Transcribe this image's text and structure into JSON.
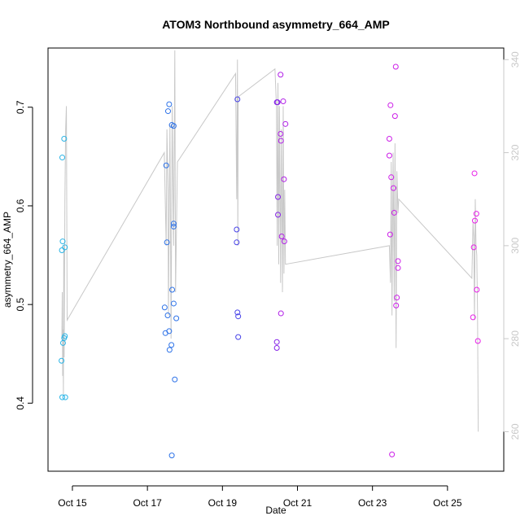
{
  "chart_data": {
    "type": "scatter",
    "title": "ATOM3 Northbound asymmetry_664_AMP",
    "xlabel": "Date",
    "ylabel": "asymmetry_664_AMP",
    "xlim": [
      14.35,
      26.5
    ],
    "ylim": [
      0.331,
      0.76
    ],
    "y2lim": [
      251.5,
      342.5
    ],
    "x_ticks": [
      {
        "value": 15,
        "label": "Oct 15"
      },
      {
        "value": 17,
        "label": "Oct 17"
      },
      {
        "value": 19,
        "label": "Oct 19"
      },
      {
        "value": 21,
        "label": "Oct 21"
      },
      {
        "value": 23,
        "label": "Oct 23"
      },
      {
        "value": 25,
        "label": "Oct 25"
      }
    ],
    "y_ticks": [
      {
        "value": 0.4,
        "label": "0.4"
      },
      {
        "value": 0.5,
        "label": "0.5"
      },
      {
        "value": 0.6,
        "label": "0.6"
      },
      {
        "value": 0.7,
        "label": "0.7"
      }
    ],
    "y2_ticks": [
      {
        "value": 260,
        "label": "260"
      },
      {
        "value": 280,
        "label": "280"
      },
      {
        "value": 300,
        "label": "300"
      },
      {
        "value": 320,
        "label": "320"
      },
      {
        "value": 340,
        "label": "340"
      }
    ],
    "colors": {
      "line": "#c8c8c8",
      "point_scale": [
        "#29b4e6",
        "#2e62e8",
        "#5a2ee8",
        "#a31ee8",
        "#e81ee8"
      ]
    },
    "points": [
      {
        "x": 14.78,
        "y": 0.668,
        "c": 0.0
      },
      {
        "x": 14.73,
        "y": 0.649,
        "c": 0.0
      },
      {
        "x": 14.74,
        "y": 0.564,
        "c": 0.0
      },
      {
        "x": 14.8,
        "y": 0.558,
        "c": 0.0
      },
      {
        "x": 14.72,
        "y": 0.555,
        "c": 0.0
      },
      {
        "x": 14.8,
        "y": 0.468,
        "c": 0.0
      },
      {
        "x": 14.78,
        "y": 0.466,
        "c": 0.0
      },
      {
        "x": 14.75,
        "y": 0.461,
        "c": 0.0
      },
      {
        "x": 14.71,
        "y": 0.443,
        "c": 0.0
      },
      {
        "x": 14.73,
        "y": 0.406,
        "c": 0.0
      },
      {
        "x": 14.81,
        "y": 0.406,
        "c": 0.0
      },
      {
        "x": 17.58,
        "y": 0.703,
        "c": 0.2
      },
      {
        "x": 17.55,
        "y": 0.696,
        "c": 0.2
      },
      {
        "x": 17.65,
        "y": 0.682,
        "c": 0.2
      },
      {
        "x": 17.7,
        "y": 0.681,
        "c": 0.2
      },
      {
        "x": 17.5,
        "y": 0.641,
        "c": 0.2
      },
      {
        "x": 17.7,
        "y": 0.582,
        "c": 0.2
      },
      {
        "x": 17.7,
        "y": 0.579,
        "c": 0.2
      },
      {
        "x": 17.52,
        "y": 0.563,
        "c": 0.2
      },
      {
        "x": 17.66,
        "y": 0.515,
        "c": 0.2
      },
      {
        "x": 17.7,
        "y": 0.501,
        "c": 0.2
      },
      {
        "x": 17.46,
        "y": 0.497,
        "c": 0.2
      },
      {
        "x": 17.54,
        "y": 0.489,
        "c": 0.2
      },
      {
        "x": 17.77,
        "y": 0.486,
        "c": 0.2
      },
      {
        "x": 17.58,
        "y": 0.473,
        "c": 0.2
      },
      {
        "x": 17.48,
        "y": 0.471,
        "c": 0.2
      },
      {
        "x": 17.64,
        "y": 0.459,
        "c": 0.2
      },
      {
        "x": 17.59,
        "y": 0.454,
        "c": 0.2
      },
      {
        "x": 17.73,
        "y": 0.424,
        "c": 0.2
      },
      {
        "x": 17.65,
        "y": 0.347,
        "c": 0.2
      },
      {
        "x": 19.4,
        "y": 0.708,
        "c": 0.4
      },
      {
        "x": 19.38,
        "y": 0.576,
        "c": 0.4
      },
      {
        "x": 19.38,
        "y": 0.563,
        "c": 0.4
      },
      {
        "x": 19.4,
        "y": 0.492,
        "c": 0.4
      },
      {
        "x": 19.42,
        "y": 0.488,
        "c": 0.4
      },
      {
        "x": 19.42,
        "y": 0.467,
        "c": 0.4
      },
      {
        "x": 20.45,
        "y": 0.705,
        "c": 0.65
      },
      {
        "x": 20.47,
        "y": 0.705,
        "c": 0.65
      },
      {
        "x": 20.48,
        "y": 0.609,
        "c": 0.65
      },
      {
        "x": 20.48,
        "y": 0.591,
        "c": 0.65
      },
      {
        "x": 20.45,
        "y": 0.462,
        "c": 0.65
      },
      {
        "x": 20.45,
        "y": 0.456,
        "c": 0.65
      },
      {
        "x": 20.55,
        "y": 0.733,
        "c": 0.8
      },
      {
        "x": 20.62,
        "y": 0.706,
        "c": 0.8
      },
      {
        "x": 20.68,
        "y": 0.683,
        "c": 0.8
      },
      {
        "x": 20.55,
        "y": 0.673,
        "c": 0.8
      },
      {
        "x": 20.56,
        "y": 0.666,
        "c": 0.8
      },
      {
        "x": 20.64,
        "y": 0.627,
        "c": 0.8
      },
      {
        "x": 20.58,
        "y": 0.569,
        "c": 0.8
      },
      {
        "x": 20.65,
        "y": 0.564,
        "c": 0.8
      },
      {
        "x": 20.56,
        "y": 0.491,
        "c": 0.8
      },
      {
        "x": 23.62,
        "y": 0.741,
        "c": 0.9
      },
      {
        "x": 23.48,
        "y": 0.702,
        "c": 0.9
      },
      {
        "x": 23.6,
        "y": 0.691,
        "c": 0.9
      },
      {
        "x": 23.45,
        "y": 0.668,
        "c": 0.9
      },
      {
        "x": 23.45,
        "y": 0.651,
        "c": 0.9
      },
      {
        "x": 23.5,
        "y": 0.629,
        "c": 0.9
      },
      {
        "x": 23.56,
        "y": 0.618,
        "c": 0.9
      },
      {
        "x": 23.58,
        "y": 0.593,
        "c": 0.9
      },
      {
        "x": 23.47,
        "y": 0.571,
        "c": 0.9
      },
      {
        "x": 23.68,
        "y": 0.544,
        "c": 0.9
      },
      {
        "x": 23.68,
        "y": 0.537,
        "c": 0.9
      },
      {
        "x": 23.65,
        "y": 0.507,
        "c": 0.9
      },
      {
        "x": 23.63,
        "y": 0.499,
        "c": 0.9
      },
      {
        "x": 23.52,
        "y": 0.348,
        "c": 0.9
      },
      {
        "x": 25.73,
        "y": 0.585,
        "c": 1.0
      },
      {
        "x": 25.72,
        "y": 0.633,
        "c": 1.0
      },
      {
        "x": 25.77,
        "y": 0.592,
        "c": 1.0
      },
      {
        "x": 25.7,
        "y": 0.558,
        "c": 1.0
      },
      {
        "x": 25.78,
        "y": 0.515,
        "c": 1.0
      },
      {
        "x": 25.68,
        "y": 0.487,
        "c": 1.0
      },
      {
        "x": 25.81,
        "y": 0.463,
        "c": 1.0
      }
    ],
    "line_series_right_axis": [
      [
        14.72,
        280
      ],
      [
        14.73,
        290
      ],
      [
        14.74,
        272
      ],
      [
        14.75,
        282
      ],
      [
        14.76,
        268
      ],
      [
        14.77,
        300
      ],
      [
        14.78,
        276
      ],
      [
        14.8,
        310
      ],
      [
        14.82,
        325
      ],
      [
        14.84,
        330
      ],
      [
        14.86,
        284
      ],
      [
        17.45,
        320
      ],
      [
        17.5,
        300
      ],
      [
        17.52,
        325
      ],
      [
        17.55,
        312
      ],
      [
        17.56,
        285
      ],
      [
        17.6,
        326
      ],
      [
        17.63,
        280
      ],
      [
        17.66,
        330
      ],
      [
        17.7,
        300
      ],
      [
        17.73,
        342
      ],
      [
        17.75,
        290
      ],
      [
        17.8,
        318
      ],
      [
        19.35,
        337
      ],
      [
        19.38,
        310
      ],
      [
        19.4,
        340
      ],
      [
        19.41,
        300
      ],
      [
        19.42,
        332
      ],
      [
        20.4,
        338
      ],
      [
        20.44,
        330
      ],
      [
        20.46,
        300
      ],
      [
        20.48,
        335
      ],
      [
        20.5,
        296
      ],
      [
        20.52,
        330
      ],
      [
        20.55,
        292
      ],
      [
        20.57,
        325
      ],
      [
        20.6,
        290
      ],
      [
        20.62,
        330
      ],
      [
        20.64,
        294
      ],
      [
        20.66,
        312
      ],
      [
        20.68,
        296
      ],
      [
        23.45,
        300
      ],
      [
        23.48,
        292
      ],
      [
        23.5,
        318
      ],
      [
        23.52,
        285
      ],
      [
        23.55,
        320
      ],
      [
        23.58,
        288
      ],
      [
        23.6,
        322
      ],
      [
        23.63,
        278
      ],
      [
        23.65,
        316
      ],
      [
        23.68,
        307
      ],
      [
        23.7,
        310
      ],
      [
        25.65,
        293
      ],
      [
        25.68,
        305
      ],
      [
        25.7,
        302
      ],
      [
        25.72,
        284
      ],
      [
        25.74,
        310
      ],
      [
        25.76,
        300
      ],
      [
        25.78,
        298
      ],
      [
        25.8,
        286
      ],
      [
        25.82,
        260
      ]
    ]
  }
}
